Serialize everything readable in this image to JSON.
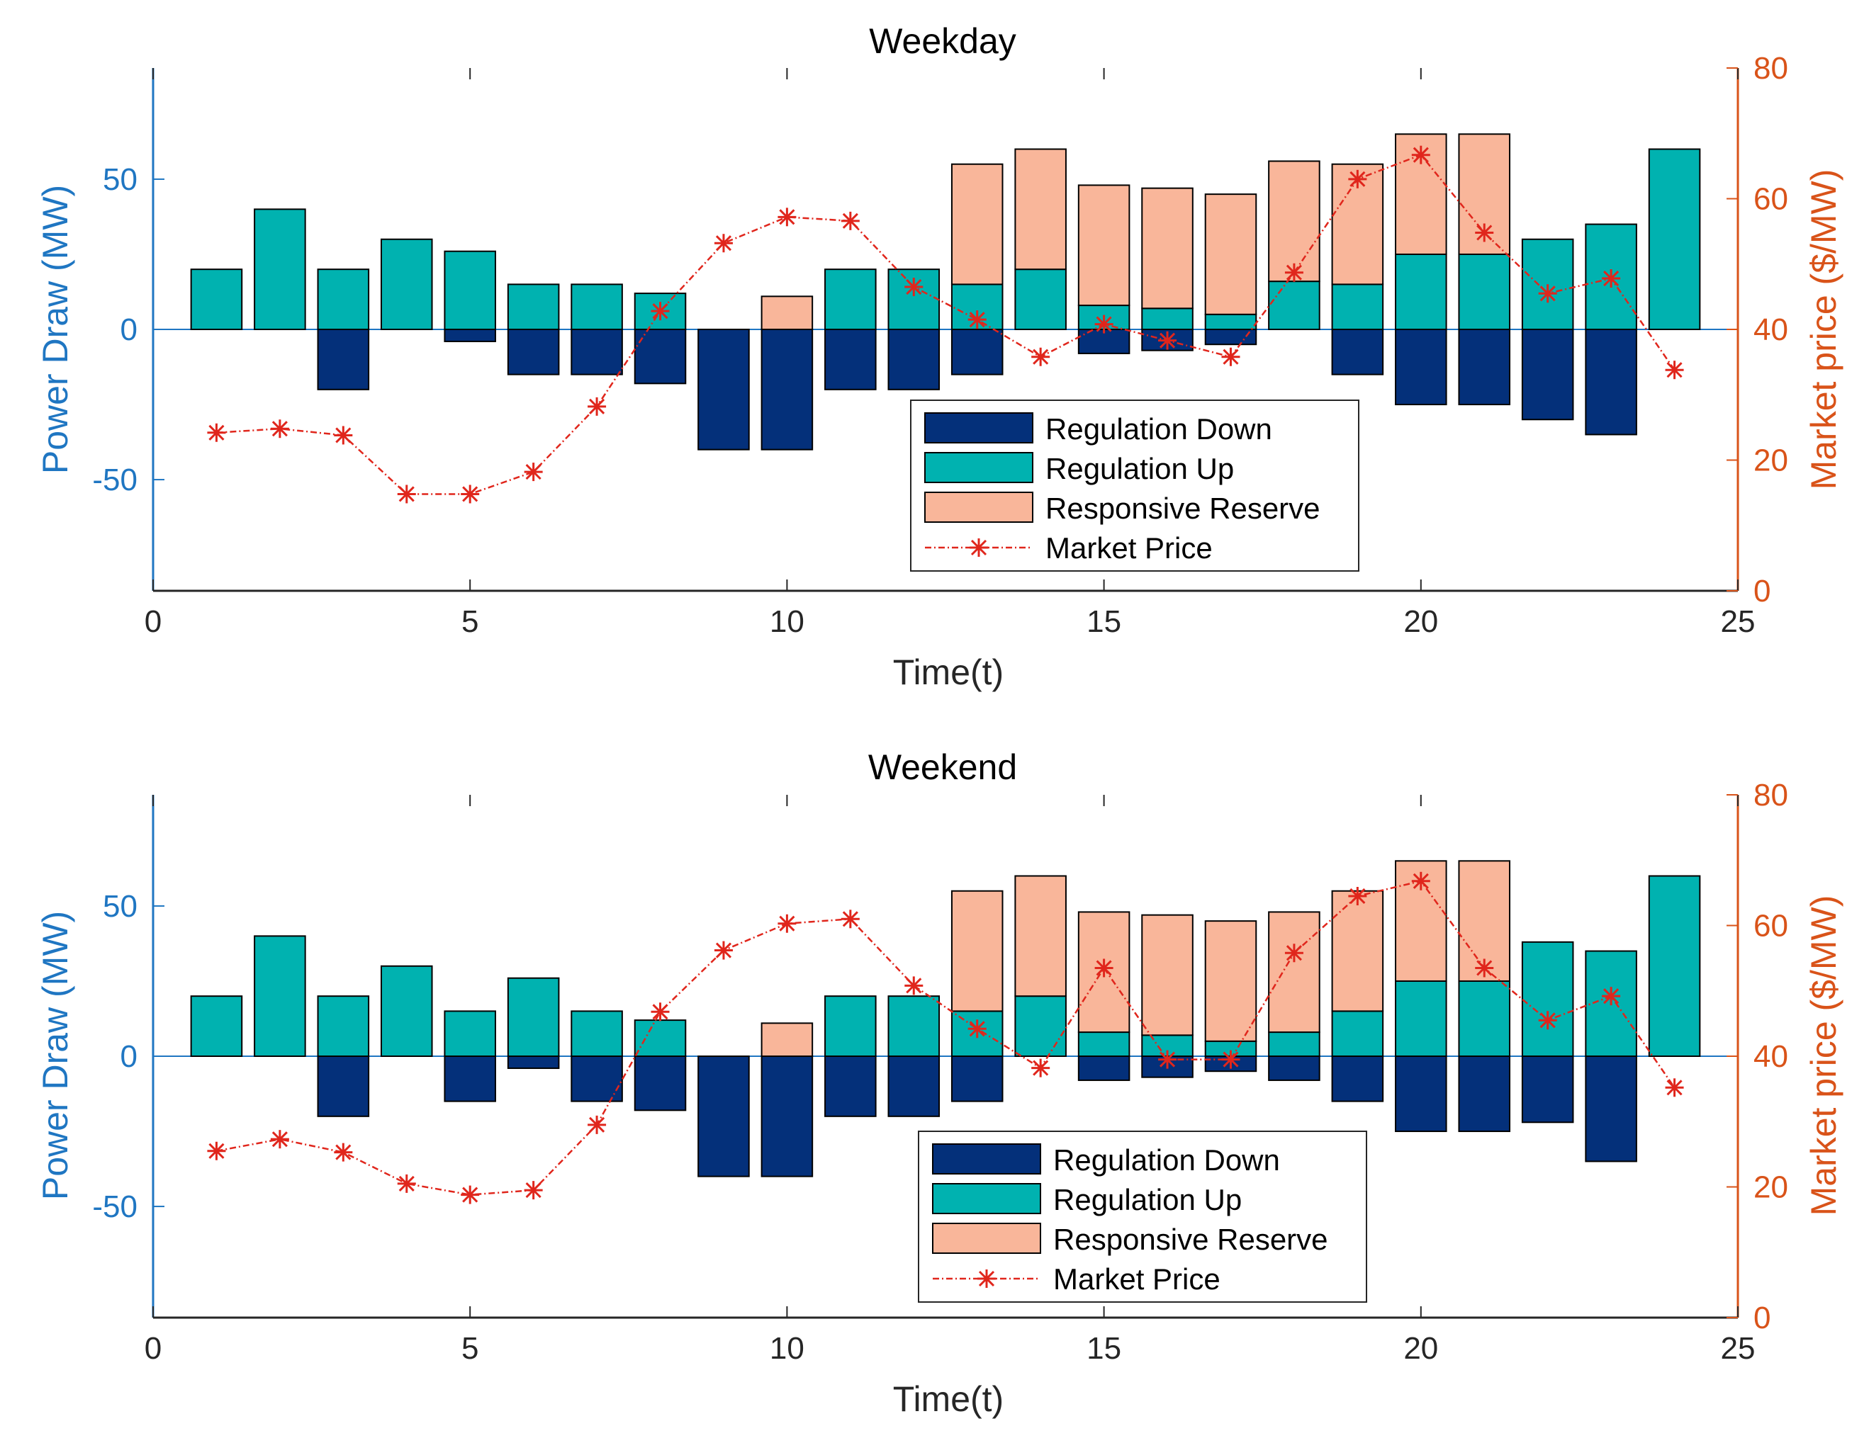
{
  "colors": {
    "reg_down": "#04307A",
    "reg_up": "#00B2B0",
    "resp_reserve": "#F9B69A",
    "market_price": "#E0261C",
    "left_axis": "#1F76C2",
    "right_axis": "#D95319",
    "axis": "#262626"
  },
  "chart_data": [
    {
      "type": "bar",
      "title": "Weekday",
      "xlabel": "Time(t)",
      "ylabel": "Power Draw (MW)",
      "ylabel_right": "Market price ($/MW)",
      "xlim": [
        0,
        25
      ],
      "ylim": [
        -87,
        87
      ],
      "ylim_right": [
        0,
        80
      ],
      "xticks": [
        "0",
        "5",
        "10",
        "15",
        "20",
        "25"
      ],
      "yticks": [
        "-50",
        "0",
        "50"
      ],
      "yticks_right": [
        "0",
        "20",
        "40",
        "60",
        "80"
      ],
      "legend_labels": [
        "Regulation Down",
        "Regulation Up",
        "Responsive Reserve",
        "Market Price"
      ],
      "legend_location": "bottom-center",
      "x": [
        1,
        2,
        3,
        4,
        5,
        6,
        7,
        8,
        9,
        10,
        11,
        12,
        13,
        14,
        15,
        16,
        17,
        18,
        19,
        20,
        21,
        22,
        23,
        24
      ],
      "series": [
        {
          "name": "Regulation Down",
          "values": [
            0,
            0,
            -20,
            0,
            -4,
            -15,
            -15,
            -18,
            -40,
            -40,
            -20,
            -20,
            -15,
            0,
            -8,
            -7,
            -5,
            0,
            -15,
            -25,
            -25,
            -30,
            -35,
            0
          ]
        },
        {
          "name": "Regulation Up",
          "values": [
            20,
            40,
            20,
            30,
            26,
            15,
            15,
            12,
            0,
            0,
            20,
            20,
            15,
            20,
            8,
            7,
            5,
            16,
            15,
            25,
            25,
            30,
            35,
            60
          ]
        },
        {
          "name": "Responsive Reserve",
          "values": [
            0,
            0,
            0,
            0,
            0,
            0,
            0,
            0,
            0,
            11,
            0,
            0,
            40,
            40,
            40,
            40,
            40,
            40,
            40,
            40,
            40,
            0,
            0,
            0
          ]
        },
        {
          "name": "Market Price",
          "axis": "right",
          "values": [
            24.2,
            24.8,
            23.8,
            14.8,
            14.8,
            18.2,
            28.2,
            42.8,
            53.2,
            57.2,
            56.6,
            46.5,
            41.5,
            35.8,
            40.8,
            38.3,
            35.8,
            48.7,
            63.0,
            66.7,
            54.8,
            45.5,
            47.8,
            33.8
          ]
        }
      ]
    },
    {
      "type": "bar",
      "title": "Weekend",
      "xlabel": "Time(t)",
      "ylabel": "Power Draw (MW)",
      "ylabel_right": "Market price ($/MW)",
      "xlim": [
        0,
        25
      ],
      "ylim": [
        -87,
        87
      ],
      "ylim_right": [
        0,
        80
      ],
      "xticks": [
        "0",
        "5",
        "10",
        "15",
        "20",
        "25"
      ],
      "yticks": [
        "-50",
        "0",
        "50"
      ],
      "yticks_right": [
        "0",
        "20",
        "40",
        "60",
        "80"
      ],
      "legend_labels": [
        "Regulation Down",
        "Regulation Up",
        "Responsive Reserve",
        "Market Price"
      ],
      "legend_location": "bottom-center",
      "x": [
        1,
        2,
        3,
        4,
        5,
        6,
        7,
        8,
        9,
        10,
        11,
        12,
        13,
        14,
        15,
        16,
        17,
        18,
        19,
        20,
        21,
        22,
        23,
        24
      ],
      "series": [
        {
          "name": "Regulation Down",
          "values": [
            0,
            0,
            -20,
            0,
            -15,
            -4,
            -15,
            -18,
            -40,
            -40,
            -20,
            -20,
            -15,
            0,
            -8,
            -7,
            -5,
            -8,
            -15,
            -25,
            -25,
            -22,
            -35,
            0
          ]
        },
        {
          "name": "Regulation Up",
          "values": [
            20,
            40,
            20,
            30,
            15,
            26,
            15,
            12,
            0,
            0,
            20,
            20,
            15,
            20,
            8,
            7,
            5,
            8,
            15,
            25,
            25,
            38,
            35,
            60
          ]
        },
        {
          "name": "Responsive Reserve",
          "values": [
            0,
            0,
            0,
            0,
            0,
            0,
            0,
            0,
            0,
            11,
            0,
            0,
            40,
            40,
            40,
            40,
            40,
            40,
            40,
            40,
            40,
            0,
            0,
            0
          ]
        },
        {
          "name": "Market Price",
          "axis": "right",
          "values": [
            25.5,
            27.3,
            25.3,
            20.5,
            18.8,
            19.5,
            29.5,
            46.8,
            56.2,
            60.3,
            61.0,
            50.8,
            44.2,
            38.2,
            53.5,
            39.5,
            39.5,
            55.8,
            64.5,
            66.8,
            53.5,
            45.5,
            49.2,
            35.2
          ]
        }
      ]
    }
  ]
}
